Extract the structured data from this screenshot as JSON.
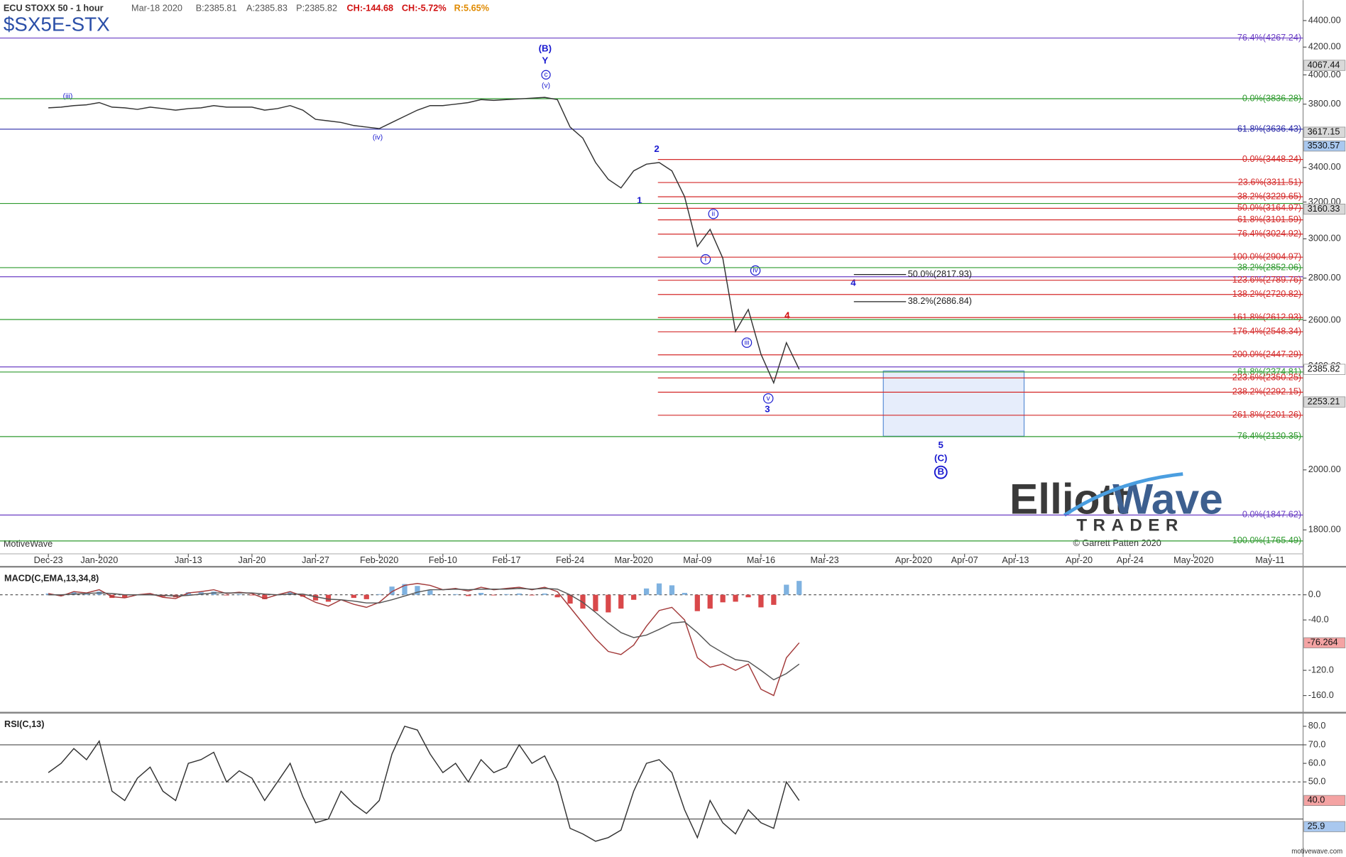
{
  "header": {
    "instrument": "ECU STOXX 50 - 1 hour",
    "date": "Mar-18 2020",
    "bid": "B:2385.81",
    "ask": "A:2385.83",
    "price": "P:2385.82",
    "change": "CH:-144.68",
    "change_pct": "CH:-5.72%",
    "range": "R:5.65%",
    "symbol": "$SX5E-STX"
  },
  "chart_data": [
    {
      "type": "line",
      "log_scale": true,
      "x": [
        0,
        1,
        2,
        3,
        4,
        5,
        6,
        7,
        8,
        9,
        10,
        11,
        12,
        13,
        14,
        15,
        16,
        17,
        18,
        19,
        20,
        21,
        22,
        23,
        24,
        25,
        26,
        27,
        28,
        29,
        30,
        31,
        32,
        33,
        34,
        35,
        36,
        37,
        38,
        39,
        40,
        41,
        42,
        43,
        44,
        45,
        46,
        47,
        48,
        49,
        50,
        51,
        52,
        53,
        54,
        55,
        56,
        57,
        58,
        59
      ],
      "xlim": [
        -3.8,
        98.6
      ],
      "xticks": [
        {
          "value": 0,
          "label": "Dec-23"
        },
        {
          "value": 4,
          "label": "Jan-2020"
        },
        {
          "value": 11,
          "label": "Jan-13"
        },
        {
          "value": 16,
          "label": "Jan-20"
        },
        {
          "value": 21,
          "label": "Jan-27"
        },
        {
          "value": 26,
          "label": "Feb-2020"
        },
        {
          "value": 31,
          "label": "Feb-10"
        },
        {
          "value": 36,
          "label": "Feb-17"
        },
        {
          "value": 41,
          "label": "Feb-24"
        },
        {
          "value": 46,
          "label": "Mar-2020"
        },
        {
          "value": 51,
          "label": "Mar-09"
        },
        {
          "value": 56,
          "label": "Mar-16"
        },
        {
          "value": 61,
          "label": "Mar-23"
        },
        {
          "value": 68,
          "label": "Apr-2020"
        },
        {
          "value": 72,
          "label": "Apr-07"
        },
        {
          "value": 76,
          "label": "Apr-13"
        },
        {
          "value": 81,
          "label": "Apr-20"
        },
        {
          "value": 85,
          "label": "Apr-24"
        },
        {
          "value": 90,
          "label": "May-2020"
        },
        {
          "value": 96,
          "label": "May-11"
        }
      ],
      "ylim": [
        1726,
        4561
      ],
      "yticks": [
        {
          "value": 1800,
          "label": "1800.00"
        },
        {
          "value": 2000,
          "label": "2000.00"
        },
        {
          "value": 2400,
          "label": "2400.00"
        },
        {
          "value": 2600,
          "label": "2600.00"
        },
        {
          "value": 2800,
          "label": "2800.00"
        },
        {
          "value": 3000,
          "label": "3000.00"
        },
        {
          "value": 3200,
          "label": "3200.00"
        },
        {
          "value": 3400,
          "label": "3400.00"
        },
        {
          "value": 3800,
          "label": "3800.00"
        },
        {
          "value": 4000,
          "label": "4000.00"
        },
        {
          "value": 4200,
          "label": "4200.00"
        },
        {
          "value": 4400,
          "label": "4400.00"
        }
      ],
      "series": [
        {
          "color": "#333333",
          "values": [
            3775,
            3780,
            3790,
            3795,
            3810,
            3780,
            3775,
            3765,
            3780,
            3770,
            3760,
            3770,
            3775,
            3790,
            3780,
            3780,
            3780,
            3760,
            3770,
            3790,
            3760,
            3700,
            3690,
            3680,
            3660,
            3650,
            3640,
            3680,
            3720,
            3760,
            3790,
            3790,
            3800,
            3810,
            3830,
            3825,
            3830,
            3835,
            3840,
            3845,
            3830,
            3650,
            3580,
            3430,
            3330,
            3280,
            3380,
            3420,
            3430,
            3380,
            3230,
            2960,
            3050,
            2900,
            2550,
            2650,
            2450,
            2330,
            2500,
            2385.82
          ]
        }
      ],
      "levels": [
        {
          "value": 4267.24,
          "label": "76.4%(4267.24)",
          "color": "#6b3fc4",
          "from": -3.8
        },
        {
          "value": 3836.28,
          "label": "0.0%(3836.28)",
          "color": "#2f9a2f",
          "from": -3.8
        },
        {
          "value": 3636.43,
          "label": "61.8%(3636.43)",
          "color": "#2a2aa8",
          "from": -3.8
        },
        {
          "value": 3448.24,
          "label": "0.0%(3448.24)",
          "color": "#d42a2a",
          "from": 47.9
        },
        {
          "value": 3311.51,
          "label": "23.6%(3311.51)",
          "color": "#d42a2a",
          "from": 47.9
        },
        {
          "value": 3229.65,
          "label": "38.2%(3229.65)",
          "color": "#d42a2a",
          "from": 47.9
        },
        {
          "value": 3192,
          "color": "#2f9a2f",
          "from": -3.8
        },
        {
          "value": 3164.97,
          "label": "50.0%(3164.97)",
          "color": "#d42a2a",
          "from": 47.9
        },
        {
          "value": 3101.59,
          "label": "61.8%(3101.59)",
          "color": "#d42a2a",
          "from": 47.9
        },
        {
          "value": 3024.92,
          "label": "76.4%(3024.92)",
          "color": "#d42a2a",
          "from": 47.9
        },
        {
          "value": 2904.97,
          "label": "100.0%(2904.97)",
          "color": "#d42a2a",
          "from": 47.9
        },
        {
          "value": 2852.06,
          "label": "38.2%(2852.06)",
          "color": "#2f9a2f",
          "from": -3.8
        },
        {
          "value": 2807,
          "color": "#6b3fc4",
          "from": -3.8
        },
        {
          "value": 2789.76,
          "label": "123.6%(2789.76)",
          "color": "#d42a2a",
          "from": 47.9
        },
        {
          "value": 2720.82,
          "label": "138.2%(2720.82)",
          "color": "#d42a2a",
          "from": 47.9
        },
        {
          "value": 2612.93,
          "label": "161.8%(2612.93)",
          "color": "#d42a2a",
          "from": 47.9
        },
        {
          "value": 2604,
          "color": "#2f9a2f",
          "from": -3.8
        },
        {
          "value": 2548.34,
          "label": "176.4%(2548.34)",
          "color": "#d42a2a",
          "from": 47.9
        },
        {
          "value": 2447.29,
          "label": "200.0%(2447.29)",
          "color": "#d42a2a",
          "from": 47.9
        },
        {
          "value": 2396,
          "color": "#6b3fc4",
          "from": -3.8
        },
        {
          "value": 2374.81,
          "label": "61.8%(2374.81)",
          "color": "#2f9a2f",
          "from": -3.8
        },
        {
          "value": 2350.25,
          "label": "223.6%(2350.25)",
          "color": "#d42a2a",
          "from": 47.9
        },
        {
          "value": 2292.15,
          "label": "238.2%(2292.15)",
          "color": "#d42a2a",
          "from": 47.9
        },
        {
          "value": 2201.26,
          "label": "261.8%(2201.26)",
          "color": "#d42a2a",
          "from": 47.9
        },
        {
          "value": 2120.35,
          "label": "76.4%(2120.35)",
          "color": "#2f9a2f",
          "from": -3.8
        },
        {
          "value": 1847.62,
          "label": "0.0%(1847.62)",
          "color": "#6b3fc4",
          "from": -3.8
        },
        {
          "value": 1765.49,
          "label": "100.0%(1765.49)",
          "color": "#2f9a2f",
          "from": -3.8
        }
      ],
      "projections": [
        {
          "value": 2817.93,
          "label": "50.0%(2817.93)",
          "from": 63.3,
          "to": 67.4
        },
        {
          "value": 2686.84,
          "label": "38.2%(2686.84)",
          "from": 63.3,
          "to": 67.4
        }
      ],
      "value_boxes": [
        {
          "value": 4067.44,
          "color": "#d9d9d9"
        },
        {
          "value": 3617.15,
          "color": "#d9d9d9"
        },
        {
          "value": 3530.57,
          "color": "#a9c8ef"
        },
        {
          "value": 3160.33,
          "color": "#d9d9d9"
        },
        {
          "value": 2385.82,
          "color": "#ffffff"
        },
        {
          "value": 2253.21,
          "color": "#d9d9d9"
        }
      ]
    },
    {
      "type": "line",
      "title": "MACD(C,EMA,13,34,8)",
      "x": [
        0,
        1,
        2,
        3,
        4,
        5,
        6,
        7,
        8,
        9,
        10,
        11,
        12,
        13,
        14,
        15,
        16,
        17,
        18,
        19,
        20,
        21,
        22,
        23,
        24,
        25,
        26,
        27,
        28,
        29,
        30,
        31,
        32,
        33,
        34,
        35,
        36,
        37,
        38,
        39,
        40,
        41,
        42,
        43,
        44,
        45,
        46,
        47,
        48,
        49,
        50,
        51,
        52,
        53,
        54,
        55,
        56,
        57,
        58,
        59
      ],
      "xlim": [
        -3.8,
        98.6
      ],
      "ylim": [
        -184.5,
        41.8
      ],
      "yticks": [
        {
          "value": 0,
          "label": "0.0"
        },
        {
          "value": -40,
          "label": "-40.0"
        },
        {
          "value": -120,
          "label": "-120.0"
        },
        {
          "value": -160,
          "label": "-160.0"
        }
      ],
      "series": [
        {
          "style": "bar",
          "color": "#7fb2e0",
          "negative_color": "#d9484a",
          "values": [
            2,
            -2,
            4,
            1,
            5,
            -5,
            -5,
            0,
            2,
            -3,
            -4,
            4,
            4,
            5,
            -1,
            1,
            -1,
            -7,
            0,
            4,
            -3,
            -9,
            -11,
            0,
            -5,
            -7,
            1,
            13,
            17,
            14,
            7,
            0,
            1,
            -2,
            3,
            -1,
            1,
            2,
            -1,
            2,
            -4,
            -14,
            -22,
            -26,
            -28,
            -22,
            -8,
            10,
            18,
            15,
            3,
            -26,
            -22,
            -12,
            -11,
            -4,
            -20,
            -16,
            16,
            22
          ]
        },
        {
          "color": "#a33a3a",
          "values": [
            2,
            -2,
            5,
            3,
            8,
            -3,
            -5,
            0,
            2,
            -4,
            -6,
            3,
            5,
            8,
            2,
            4,
            2,
            -6,
            0,
            5,
            -2,
            -12,
            -18,
            -8,
            -15,
            -20,
            -12,
            5,
            15,
            18,
            15,
            8,
            10,
            6,
            12,
            8,
            10,
            12,
            8,
            12,
            5,
            -20,
            -45,
            -70,
            -90,
            -95,
            -80,
            -50,
            -25,
            -20,
            -40,
            -100,
            -115,
            -110,
            -120,
            -110,
            -150,
            -160,
            -100,
            -76.264
          ]
        },
        {
          "color": "#555555",
          "values": [
            0,
            0,
            1,
            2,
            3,
            2,
            0,
            0,
            0,
            -1,
            -2,
            -1,
            1,
            3,
            3,
            3,
            3,
            1,
            0,
            1,
            1,
            -3,
            -7,
            -8,
            -10,
            -13,
            -13,
            -8,
            -2,
            4,
            8,
            8,
            9,
            8,
            9,
            9,
            9,
            10,
            9,
            10,
            9,
            0,
            -12,
            -28,
            -45,
            -60,
            -68,
            -64,
            -55,
            -45,
            -43,
            -60,
            -80,
            -92,
            -103,
            -106,
            -120,
            -135,
            -125,
            -110
          ]
        }
      ],
      "value_boxes": [
        {
          "value": -76.264,
          "color": "#f4a3a3"
        }
      ]
    },
    {
      "type": "line",
      "title": "RSI(C,13)",
      "x": [
        0,
        1,
        2,
        3,
        4,
        5,
        6,
        7,
        8,
        9,
        10,
        11,
        12,
        13,
        14,
        15,
        16,
        17,
        18,
        19,
        20,
        21,
        22,
        23,
        24,
        25,
        26,
        27,
        28,
        29,
        30,
        31,
        32,
        33,
        34,
        35,
        36,
        37,
        38,
        39,
        40,
        41,
        42,
        43,
        44,
        45,
        46,
        47,
        48,
        49,
        50,
        51,
        52,
        53,
        54,
        55,
        56,
        57,
        58,
        59
      ],
      "xlim": [
        -3.8,
        98.6
      ],
      "ylim": [
        10.5,
        86.4
      ],
      "yticks": [
        {
          "value": 80,
          "label": "80.0"
        },
        {
          "value": 70,
          "label": "70.0"
        },
        {
          "value": 60,
          "label": "60.0"
        },
        {
          "value": 50,
          "label": "50.0"
        }
      ],
      "bands": [
        70,
        50,
        30
      ],
      "series": [
        {
          "color": "#333333",
          "values": [
            55,
            60,
            68,
            62,
            72,
            45,
            40,
            52,
            58,
            45,
            40,
            60,
            62,
            66,
            50,
            56,
            52,
            40,
            50,
            60,
            42,
            28,
            30,
            45,
            38,
            33,
            40,
            65,
            80,
            78,
            65,
            55,
            60,
            50,
            62,
            55,
            58,
            70,
            60,
            64,
            50,
            25,
            22,
            18,
            20,
            24,
            45,
            60,
            62,
            55,
            35,
            20,
            40,
            28,
            22,
            35,
            28,
            25,
            50,
            40
          ]
        }
      ],
      "value_boxes": [
        {
          "value": 40,
          "label": "40.0",
          "color": "#f4a3a3"
        },
        {
          "value": 25.9,
          "color": "#a9c8ef"
        }
      ]
    }
  ],
  "annotations": [
    "(B)",
    "Y",
    "c",
    "(v)",
    "(iii)",
    "(iv)",
    "2",
    "1",
    "ii",
    "i",
    "iv",
    "4",
    "4",
    "iii",
    "v",
    "3",
    "5",
    "(C)",
    "B"
  ],
  "footer": {
    "platform": "MotiveWave",
    "logo_a": "Elliott",
    "logo_b": "Wave",
    "logo_c": "TRADER",
    "copyright": "© Garrett Patten 2020",
    "site": "motivewave.com"
  }
}
